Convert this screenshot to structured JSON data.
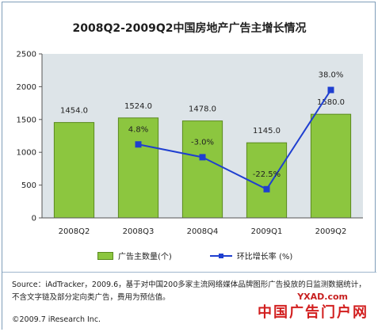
{
  "title": "2008Q2-2009Q2中国房地产广告主增长情况",
  "chart_data": {
    "type": "bar",
    "categories": [
      "2008Q2",
      "2008Q3",
      "2008Q4",
      "2009Q1",
      "2009Q2"
    ],
    "series": [
      {
        "name": "广告主数量(个)",
        "type": "bar",
        "values": [
          1454.0,
          1524.0,
          1478.0,
          1145.0,
          1580.0
        ],
        "labels": [
          "1454.0",
          "1524.0",
          "1478.0",
          "1145.0",
          "1580.0"
        ]
      },
      {
        "name": "环比增长率 (%)",
        "type": "line",
        "values": [
          null,
          4.8,
          -3.0,
          -22.5,
          38.0
        ],
        "labels": [
          "",
          "4.8%",
          "-3.0%",
          "-22.5%",
          "38.0%"
        ]
      }
    ],
    "yticks": [
      "0",
      "500",
      "1000",
      "1500",
      "2000",
      "2500"
    ],
    "ylim": [
      0,
      2500
    ],
    "grid": false,
    "legend": "bottom"
  },
  "colors": {
    "bar": "#8cc63f",
    "bar_edge": "#5a8a1f",
    "line": "#1f3fd0",
    "plot_bg": "#dde4e8"
  },
  "footer": {
    "source": "Source：iAdTracker，2009.6，基于对中国200多家主流网络媒体品牌图形广告投放的日监测数据统计，不含文字链及部分定向类广告，费用为预估值。",
    "copyright": "©2009.7 iResearch Inc.",
    "watermark": "中国广告门户网",
    "watermark_url": "YXAD.com"
  }
}
